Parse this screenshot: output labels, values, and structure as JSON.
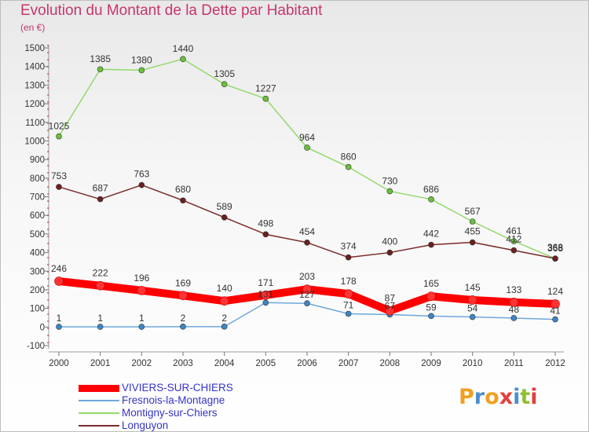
{
  "title": "Evolution du Montant de la Dette par Habitant",
  "subtitle": "(en €)",
  "logo": {
    "text": "Proxiti",
    "letter_colors": [
      "#f0a020",
      "#4a90d0",
      "#f0a020",
      "#e04040",
      "#4a90d0",
      "#90c030",
      "#e04040"
    ]
  },
  "chart_data": {
    "type": "line",
    "title": "Evolution du Montant de la Dette par Habitant",
    "ylabel": "(en €)",
    "xlabel": "",
    "x": [
      2000,
      2001,
      2002,
      2003,
      2004,
      2005,
      2006,
      2007,
      2008,
      2009,
      2010,
      2011,
      2012
    ],
    "ylim": [
      -100,
      1500
    ],
    "yticks": [
      -100,
      0,
      100,
      200,
      300,
      400,
      500,
      600,
      700,
      800,
      900,
      1000,
      1100,
      1200,
      1300,
      1400,
      1500
    ],
    "grid": false,
    "legend_position": "bottom-left",
    "series": [
      {
        "name": "VIVIERS-SUR-CHIERS",
        "color": "#ff0000",
        "marker": "#ff3333",
        "values": [
          246,
          222,
          196,
          169,
          140,
          171,
          203,
          178,
          87,
          165,
          145,
          133,
          124
        ]
      },
      {
        "name": "Fresnois-la-Montagne",
        "color": "#6fa8dc",
        "marker": "#3d85c6",
        "values": [
          1,
          1,
          1,
          2,
          2,
          131,
          127,
          71,
          67,
          59,
          54,
          48,
          41
        ]
      },
      {
        "name": "Montigny-sur-Chiers",
        "color": "#93d96b",
        "marker": "#6ac13d",
        "values": [
          1025,
          1385,
          1380,
          1440,
          1305,
          1227,
          964,
          860,
          730,
          686,
          567,
          461,
          368
        ]
      },
      {
        "name": "Longuyon",
        "color": "#7a2a2a",
        "marker": "#6b2020",
        "values": [
          753,
          687,
          763,
          680,
          589,
          498,
          454,
          374,
          400,
          442,
          455,
          412,
          368
        ]
      }
    ]
  }
}
